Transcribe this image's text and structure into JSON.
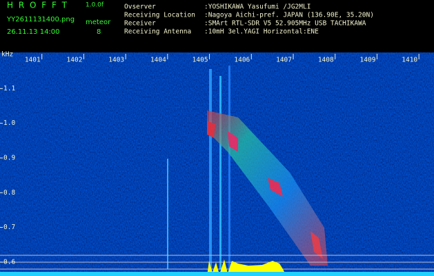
{
  "header": {
    "program": "H R O F F T",
    "version": "1.0.0f",
    "filename": "YY2611131400.png",
    "datetime": "26.11.13 14:00",
    "mode": "meteor",
    "count": "8",
    "info": [
      [
        "Ovserver",
        ":YOSHIKAWA Yasufumi /JG2MLI"
      ],
      [
        "Receiving Location",
        ":Nagoya Aichi-pref. JAPAN (136.90E, 35.20N)"
      ],
      [
        "Receiver",
        ":SMArt RTL-SDR V5 52.905MHz USB TACHIKAWA"
      ],
      [
        "Receiving Antenna",
        ":10mH 3el.YAGI Horizontal:ENE"
      ]
    ]
  },
  "chart_data": {
    "type": "spectrogram",
    "y_unit": "kHz",
    "xlim": [
      1400,
      1410.36
    ],
    "xticks": [
      1401,
      1402,
      1403,
      1404,
      1405,
      1406,
      1407,
      1408,
      1409,
      1410
    ],
    "ylim": [
      0.56,
      1.204
    ],
    "yticks": [
      0.6,
      0.7,
      0.8,
      0.9,
      {
        "value": 1,
        "label": "1.0"
      },
      1.1
    ]
  }
}
